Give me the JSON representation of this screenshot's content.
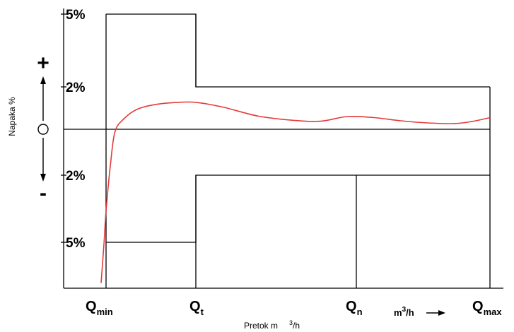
{
  "chart_data": {
    "type": "line",
    "title": "",
    "xlabel": "Pretok m",
    "xlabel_sup": "3",
    "xlabel_unit": "/h",
    "ylabel": "Napaka %",
    "unit_label": "m",
    "unit_label_sup": "3",
    "unit_label_suffix": "/h",
    "y_ticks": [
      {
        "value": 5,
        "label": "5%"
      },
      {
        "value": 2,
        "label": "2%"
      },
      {
        "value": -2,
        "label": "2%"
      },
      {
        "value": -5,
        "label": "5%"
      }
    ],
    "y_markers": {
      "plus": "+",
      "zero": "O",
      "minus": "-"
    },
    "x_ticks": [
      {
        "key": "qmin",
        "main": "Q",
        "sub": "min"
      },
      {
        "key": "qt",
        "main": "Q",
        "sub": "t"
      },
      {
        "key": "qn",
        "main": "Q",
        "sub": "n"
      },
      {
        "key": "qmax",
        "main": "Q",
        "sub": "max"
      }
    ],
    "x_positions": {
      "qmin": 0,
      "qt": 1,
      "qn": 2.8,
      "qmax": 4.3
    },
    "ylim": [
      -7,
      6
    ],
    "xlim": [
      -0.5,
      4.5
    ],
    "tolerance_envelope": {
      "upper": [
        {
          "x": 0,
          "y": 5
        },
        {
          "x": 1,
          "y": 5
        },
        {
          "x": 1,
          "y": 2
        },
        {
          "x": 4.3,
          "y": 2
        }
      ],
      "lower": [
        {
          "x": 0,
          "y": -5
        },
        {
          "x": 1,
          "y": -5
        },
        {
          "x": 1,
          "y": -2
        },
        {
          "x": 4.3,
          "y": -2
        }
      ]
    },
    "series": [
      {
        "color": "#e53a3a",
        "x": [
          -0.05,
          -0.02,
          0.0,
          0.05,
          0.1,
          0.2,
          0.35,
          0.55,
          0.8,
          1.0,
          1.3,
          1.7,
          2.1,
          2.4,
          2.7,
          3.0,
          3.3,
          3.6,
          3.9,
          4.1,
          4.3
        ],
        "y": [
          -6.5,
          -5.0,
          -3.6,
          -1.5,
          -0.1,
          0.5,
          0.95,
          1.17,
          1.27,
          1.27,
          1.05,
          0.62,
          0.42,
          0.38,
          0.6,
          0.55,
          0.4,
          0.3,
          0.27,
          0.37,
          0.55
        ]
      }
    ]
  }
}
